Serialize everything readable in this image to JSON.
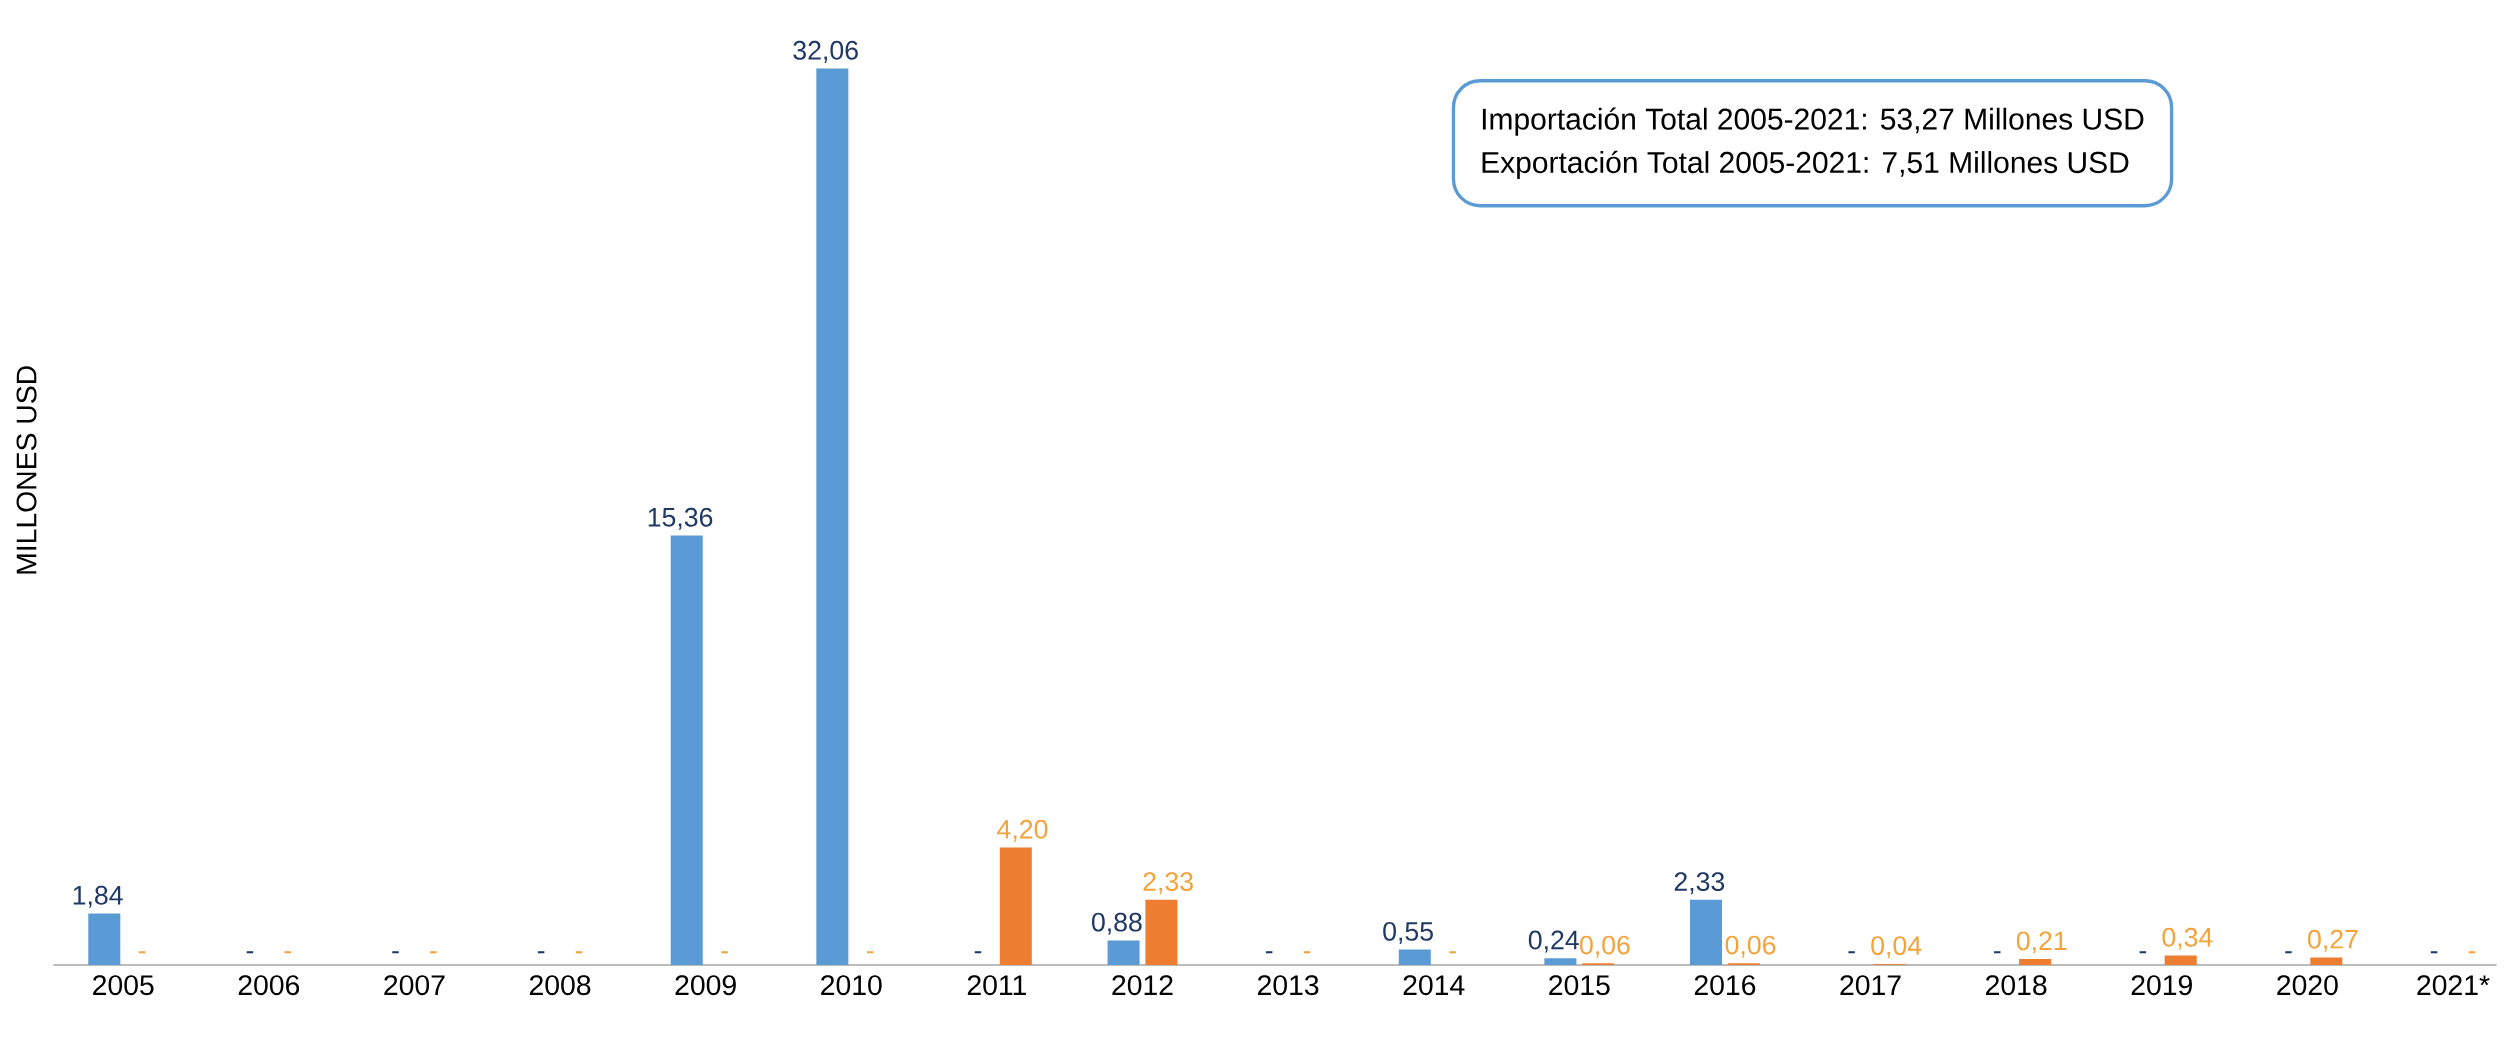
{
  "chart_data": {
    "type": "bar",
    "ylabel": "MILLONES USD",
    "categories": [
      "2005",
      "2006",
      "2007",
      "2008",
      "2009",
      "2010",
      "2011",
      "2012",
      "2013",
      "2014",
      "2015",
      "2016",
      "2017",
      "2018",
      "2019",
      "2020",
      "2021*"
    ],
    "series": [
      {
        "color": "#5b9bd5",
        "values": [
          1.84,
          0,
          0,
          0,
          15.36,
          32.06,
          0,
          0.88,
          0,
          0.55,
          0.24,
          2.33,
          0,
          0,
          0,
          0,
          0
        ],
        "value_labels": [
          "1,84",
          "-",
          "-",
          "-",
          "15,36",
          "32,06",
          "-",
          "0,88",
          "-",
          "0,55",
          "0,24",
          "2,33",
          "-",
          "-",
          "-",
          "-",
          "-"
        ]
      },
      {
        "color": "#ed7d31",
        "values": [
          0,
          0,
          0,
          0,
          0,
          0,
          4.2,
          2.33,
          0,
          0,
          0.06,
          0.06,
          0.04,
          0.21,
          0.34,
          0.27,
          0
        ],
        "value_labels": [
          "-",
          "-",
          "-",
          "-",
          "-",
          "-",
          "4,20",
          "2,33",
          "-",
          "-",
          "0,06",
          "0,06",
          "0,04",
          "0,21",
          "0,34",
          "0,27",
          "-"
        ]
      }
    ],
    "tick_labels": "x",
    "annotations": [
      "Importación Total 2005-2021: 53,27 Millones USD",
      "Exportación Total 2005-2021: 7,51 Millones USD"
    ]
  }
}
